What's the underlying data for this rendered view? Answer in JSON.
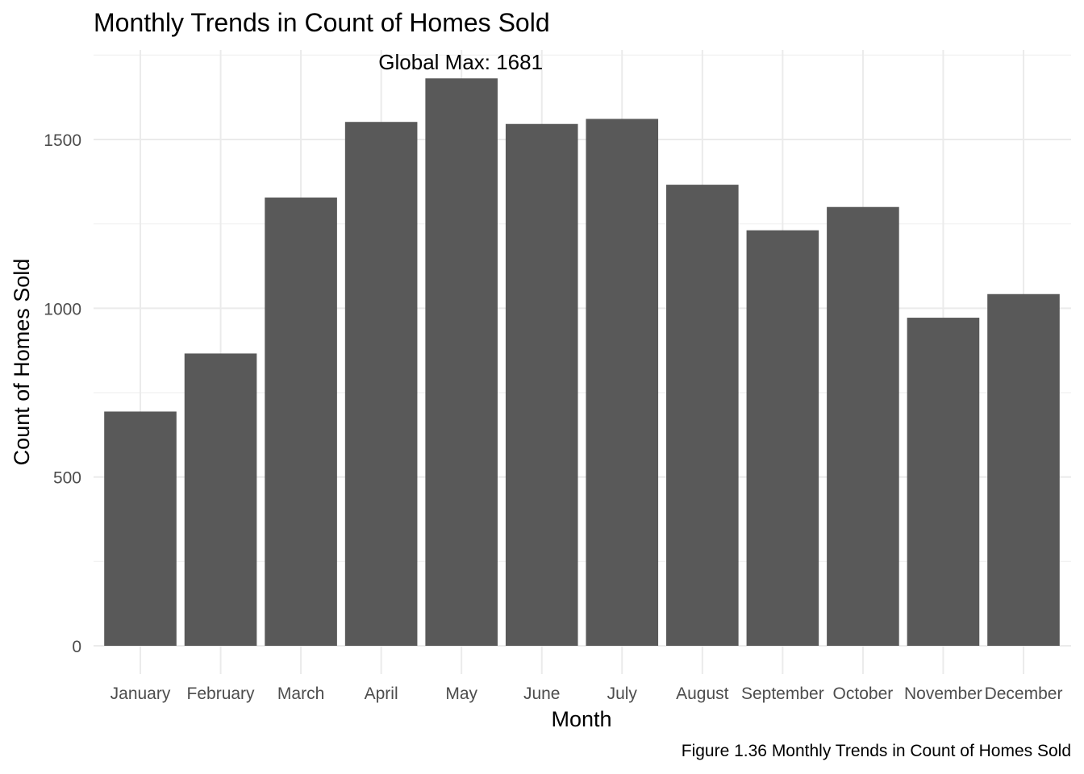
{
  "chart_data": {
    "type": "bar",
    "title": "Monthly Trends in Count of Homes Sold",
    "xlabel": "Month",
    "ylabel": "Count of Homes Sold",
    "caption": "Figure 1.36 Monthly Trends in Count of Homes Sold",
    "categories": [
      "January",
      "February",
      "March",
      "April",
      "May",
      "June",
      "July",
      "August",
      "September",
      "October",
      "November",
      "December"
    ],
    "values": [
      694,
      866,
      1328,
      1552,
      1681,
      1546,
      1561,
      1366,
      1231,
      1300,
      972,
      1042
    ],
    "ylim": [
      0,
      1750
    ],
    "yticks": [
      0,
      500,
      1000,
      1500
    ],
    "annotation": {
      "text": "Global Max: 1681",
      "category": "May",
      "value": 1681
    },
    "bar_color": "#595959",
    "grid": true
  }
}
